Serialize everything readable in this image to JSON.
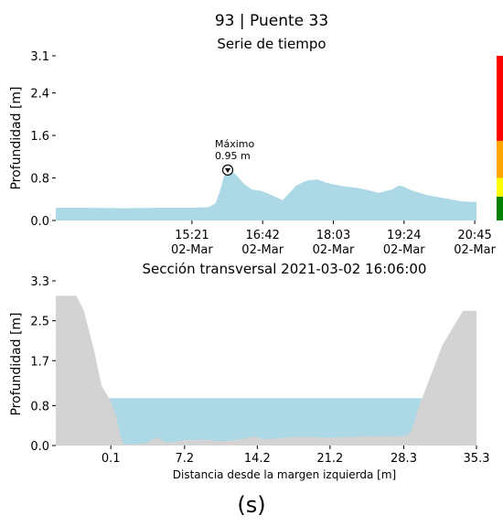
{
  "figure": {
    "title": "93 | Puente 33",
    "panel_label": "(s)"
  },
  "colors": {
    "water": "#add8e6",
    "ground": "#d3d3d3",
    "scale_red": "#ff0000",
    "scale_orange": "#ffa500",
    "scale_yellow": "#ffff00",
    "scale_green": "#008000"
  },
  "chart_data": [
    {
      "type": "area",
      "title": "Serie de tiempo",
      "ylabel": "Profundidad [m]",
      "xlabel": "",
      "xlim_minutes": [
        765,
        1247
      ],
      "ylim": [
        0,
        3.1
      ],
      "yticks": [
        "0.0",
        "0.8",
        "1.6",
        "2.4",
        "3.1"
      ],
      "ytick_values": [
        0.0,
        0.8,
        1.6,
        2.4,
        3.1
      ],
      "xticks": [
        {
          "minute": 921,
          "time": "15:21",
          "date": "02-Mar"
        },
        {
          "minute": 1002,
          "time": "16:42",
          "date": "02-Mar"
        },
        {
          "minute": 1083,
          "time": "18:03",
          "date": "02-Mar"
        },
        {
          "minute": 1164,
          "time": "19:24",
          "date": "02-Mar"
        },
        {
          "minute": 1245,
          "time": "20:45",
          "date": "02-Mar"
        }
      ],
      "series_minutes": [
        765,
        800,
        840,
        880,
        920,
        940,
        948,
        953,
        958,
        962,
        966,
        972,
        980,
        990,
        1000,
        1012,
        1025,
        1040,
        1048,
        1055,
        1065,
        1075,
        1083,
        1095,
        1108,
        1120,
        1135,
        1150,
        1158,
        1163,
        1172,
        1190,
        1210,
        1230,
        1247
      ],
      "series_depth": [
        0.24,
        0.24,
        0.23,
        0.24,
        0.24,
        0.25,
        0.32,
        0.55,
        0.85,
        0.95,
        0.93,
        0.85,
        0.7,
        0.58,
        0.56,
        0.48,
        0.38,
        0.65,
        0.72,
        0.76,
        0.77,
        0.71,
        0.68,
        0.64,
        0.62,
        0.58,
        0.52,
        0.58,
        0.66,
        0.64,
        0.57,
        0.48,
        0.42,
        0.36,
        0.35
      ],
      "max_marker": {
        "minute": 962,
        "depth": 0.95,
        "label_line1": "Máximo",
        "label_line2": "0.95 m"
      },
      "alert_scale": [
        {
          "from": 0.0,
          "to": 0.45,
          "color": "#008000"
        },
        {
          "from": 0.45,
          "to": 0.8,
          "color": "#ffff00"
        },
        {
          "from": 0.8,
          "to": 1.5,
          "color": "#ffa500"
        },
        {
          "from": 1.5,
          "to": 3.1,
          "color": "#ff0000"
        }
      ]
    },
    {
      "type": "area",
      "title": "Sección transversal 2021-03-02 16:06:00",
      "ylabel": "Profundidad [m]",
      "xlabel": "Distancia desde la margen izquierda [m]",
      "xlim": [
        -5.2,
        35.3
      ],
      "ylim": [
        0,
        3.3
      ],
      "yticks": [
        "0.0",
        "0.8",
        "1.7",
        "2.5",
        "3.3"
      ],
      "ytick_values": [
        0.0,
        0.8,
        1.7,
        2.5,
        3.3
      ],
      "xticks": [
        "0.1",
        "7.2",
        "14.2",
        "21.2",
        "28.3",
        "35.3"
      ],
      "xtick_values": [
        0.1,
        7.2,
        14.2,
        21.2,
        28.3,
        35.3
      ],
      "water_level": 0.95,
      "ground_x": [
        -5.2,
        -3.2,
        -2.5,
        -1.5,
        -0.8,
        0.0,
        0.6,
        1.0,
        1.3,
        2.0,
        3.5,
        4.5,
        5.5,
        7.0,
        9.0,
        11.0,
        13.0,
        14.0,
        15.0,
        17.0,
        19.0,
        21.0,
        23.0,
        25.0,
        27.0,
        28.5,
        29.0,
        29.8,
        32.0,
        34.0,
        35.3
      ],
      "ground_y": [
        3.0,
        3.0,
        2.7,
        1.9,
        1.2,
        0.92,
        0.6,
        0.2,
        0.03,
        0.02,
        0.05,
        0.16,
        0.05,
        0.1,
        0.12,
        0.08,
        0.14,
        0.18,
        0.12,
        0.16,
        0.18,
        0.15,
        0.17,
        0.19,
        0.18,
        0.2,
        0.27,
        0.8,
        2.0,
        2.7,
        2.7
      ]
    }
  ]
}
